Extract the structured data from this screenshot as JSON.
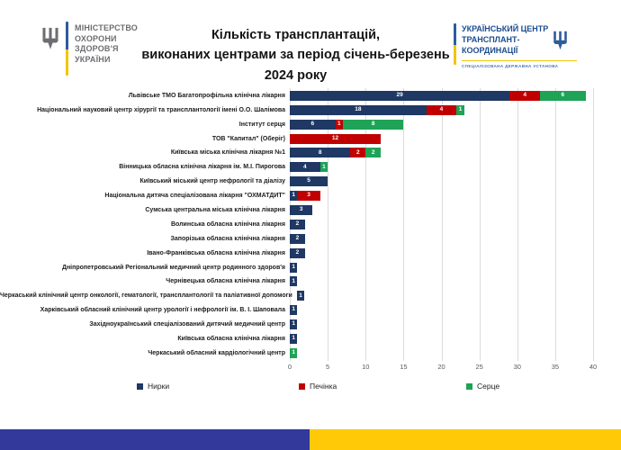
{
  "header": {
    "ministry": {
      "lines": [
        "МІНІСТЕРСТВО",
        "ОХОРОНИ",
        "ЗДОРОВ'Я",
        "УКРАЇНИ"
      ]
    },
    "title_lines": [
      "Кількість трансплантацій,",
      "виконаних центрами за період січень-березень",
      "2024 року"
    ],
    "uctc": {
      "lines": [
        "УКРАЇНСЬКИЙ ЦЕНТР",
        "ТРАНСПЛАНТ-",
        "КООРДИНАЦІЇ"
      ],
      "subtitle": "СПЕЦІАЛІЗОВАНА ДЕРЖАВНА УСТАНОВА"
    }
  },
  "chart_data": {
    "type": "bar",
    "orientation": "horizontal",
    "stacked": true,
    "title": "Кількість трансплантацій, виконаних центрами за період січень-березень 2024 року",
    "xlabel": "",
    "ylabel": "",
    "xlim": [
      0,
      40
    ],
    "xticks": [
      0,
      5,
      10,
      15,
      20,
      25,
      30,
      35,
      40
    ],
    "grid": true,
    "legend_position": "bottom",
    "categories": [
      "Львівське ТМО Багатопрофільна клінічна лікарня",
      "Національний науковий центр хірургії та трансплантології імені О.О. Шалімова",
      "Інститут серця",
      "ТОВ \"Капитал\" (Оберіг)",
      "Київська міська клінічна лікарня №1",
      "Вінницька обласна клінічна лікарня ім. М.І. Пирогова",
      "Київський міський центр нефрології та діалізу",
      "Національна дитяча спеціалізована лікарня \"ОХМАТДИТ\"",
      "Сумська центральна міська клінічна лікарня",
      "Волинська обласна клінічна лікарня",
      "Запорізька обласна клінічна лікарня",
      "Івано-Франківська обласна клінічна лікарня",
      "Дніпропетровський Регіональний медичний центр родинного здоров'я",
      "Чернівецька обласна клінічна лікарня",
      "Черкаський клінічний центр онкології, гематології, трансплантології та паліативної допомоги",
      "Харківський обласний клінічний центр урології і нефрології ім. В. І. Шаповала",
      "Західноукраїнський спеціалізований дитячий медичний центр",
      "Київська обласна клінічна лікарня",
      "Черкаський обласний кардіологічний центр"
    ],
    "series": [
      {
        "name": "Нирки",
        "color": "#1F3864",
        "values": [
          29,
          18,
          6,
          0,
          8,
          4,
          5,
          1,
          3,
          2,
          2,
          2,
          1,
          1,
          1,
          1,
          1,
          1,
          0
        ]
      },
      {
        "name": "Печінка",
        "color": "#C00000",
        "values": [
          4,
          4,
          1,
          12,
          2,
          0,
          0,
          3,
          0,
          0,
          0,
          0,
          0,
          0,
          0,
          0,
          0,
          0,
          0
        ]
      },
      {
        "name": "Серце",
        "color": "#1EA357",
        "values": [
          6,
          1,
          8,
          0,
          2,
          1,
          0,
          0,
          0,
          0,
          0,
          0,
          0,
          0,
          0,
          0,
          0,
          0,
          1
        ]
      }
    ]
  },
  "footer": {
    "flag_blue": "#33389B",
    "flag_yellow": "#FFC907"
  }
}
